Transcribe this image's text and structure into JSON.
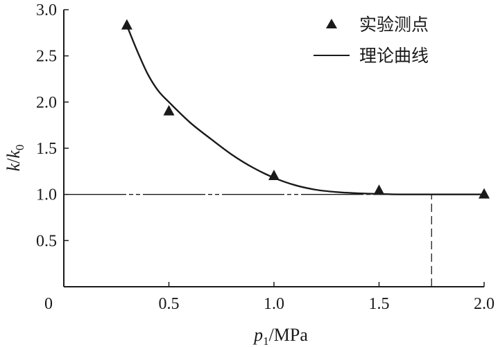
{
  "chart_data": {
    "type": "scatter",
    "xlabel": {
      "var": "p",
      "sub": "1",
      "unit": "/MPa"
    },
    "ylabel": {
      "var1": "k",
      "slash": "/",
      "var2": "k",
      "sub": "0"
    },
    "xlim": [
      0,
      2.0
    ],
    "ylim": [
      0,
      3.0
    ],
    "xticks": [
      0,
      0.5,
      1.0,
      1.5,
      2.0
    ],
    "xtick_labels": [
      "0",
      "0.5",
      "1.0",
      "1.5",
      "2.0"
    ],
    "yticks": [
      0.5,
      1.0,
      1.5,
      2.0,
      2.5,
      3.0
    ],
    "ytick_labels": [
      "0.5",
      "1.0",
      "1.5",
      "2.0",
      "2.5",
      "3.0"
    ],
    "grid": false,
    "legend_position": "top-right",
    "series": [
      {
        "name": "实验测点",
        "kind": "marker",
        "marker": "triangle",
        "x": [
          0.3,
          0.5,
          1.0,
          1.5,
          2.0
        ],
        "y": [
          2.83,
          1.9,
          1.2,
          1.04,
          1.0
        ]
      },
      {
        "name": "理论曲线",
        "kind": "line",
        "x": [
          0.3,
          0.35,
          0.4,
          0.45,
          0.5,
          0.6,
          0.7,
          0.8,
          0.9,
          1.0,
          1.1,
          1.2,
          1.3,
          1.4,
          1.5,
          1.6,
          1.75,
          1.9,
          2.0
        ],
        "y": [
          2.83,
          2.55,
          2.3,
          2.12,
          2.0,
          1.78,
          1.6,
          1.43,
          1.29,
          1.18,
          1.1,
          1.05,
          1.025,
          1.012,
          1.005,
          1.0,
          1.0,
          1.0,
          1.0
        ]
      }
    ],
    "reference_lines": [
      {
        "orientation": "horizontal",
        "value": 1.0,
        "style": "dash-dot"
      },
      {
        "orientation": "vertical",
        "value": 1.75,
        "from": 0,
        "to": 1.0,
        "style": "dashed"
      }
    ],
    "colors": {
      "ink": "#1a1a1a",
      "background": "#ffffff"
    }
  }
}
